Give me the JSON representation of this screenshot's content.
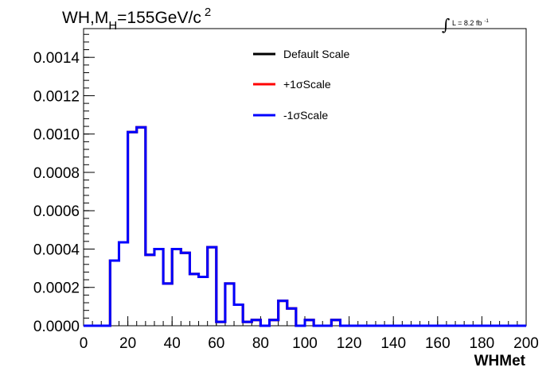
{
  "chart_data": {
    "type": "line",
    "title": {
      "main": "WH,M",
      "subscript": "H",
      "rest": "=155GeV/c",
      "superscript": "2"
    },
    "luminosity": {
      "symbol": "∫",
      "label": "L = 8.2 fb",
      "superscript": "-1"
    },
    "xlabel": "WHMet",
    "ylabel": "",
    "xlim": [
      0,
      200
    ],
    "ylim": [
      0,
      0.00155
    ],
    "x_ticks": [
      "0",
      "20",
      "40",
      "60",
      "80",
      "100",
      "120",
      "140",
      "160",
      "180",
      "200"
    ],
    "y_ticks": [
      "0.0000",
      "0.0002",
      "0.0004",
      "0.0006",
      "0.0008",
      "0.0010",
      "0.0012",
      "0.0014"
    ],
    "bin_edges": [
      0,
      4,
      8,
      12,
      16,
      20,
      24,
      28,
      32,
      36,
      40,
      44,
      48,
      52,
      56,
      60,
      64,
      68,
      72,
      76,
      80,
      84,
      88,
      92,
      96,
      100,
      104,
      108,
      112,
      116,
      120,
      124,
      128,
      132,
      136,
      140,
      144,
      148,
      152,
      156,
      160,
      164,
      168,
      172,
      176,
      180,
      184,
      188,
      192,
      196,
      200
    ],
    "legend_position": "top-center",
    "series": [
      {
        "name": "Default Scale",
        "color": "#000000",
        "values": [
          0,
          0,
          0,
          0.00034,
          0.000435,
          0.00101,
          0.001035,
          0.00037,
          0.0004,
          0.00022,
          0.0004,
          0.00038,
          0.00027,
          0.000255,
          0.00041,
          2e-05,
          0.00022,
          0.00011,
          2e-05,
          3e-05,
          0,
          3e-05,
          0.00013,
          9e-05,
          0,
          3e-05,
          0,
          0,
          3e-05,
          0,
          0,
          0,
          0,
          0,
          0,
          0,
          0,
          0,
          0,
          0,
          0,
          0,
          0,
          0,
          0,
          0,
          0,
          0,
          0,
          0
        ]
      },
      {
        "name": "+1σScale",
        "color": "#ff0000",
        "values": [
          0,
          0,
          0,
          0.00034,
          0.000435,
          0.00101,
          0.001035,
          0.00037,
          0.0004,
          0.00022,
          0.0004,
          0.00038,
          0.00027,
          0.000255,
          0.00041,
          2e-05,
          0.00022,
          0.00011,
          2e-05,
          3e-05,
          0,
          3e-05,
          0.00013,
          9e-05,
          0,
          3e-05,
          0,
          0,
          3e-05,
          0,
          0,
          0,
          0,
          0,
          0,
          0,
          0,
          0,
          0,
          0,
          0,
          0,
          0,
          0,
          0,
          0,
          0,
          0,
          0,
          0
        ]
      },
      {
        "name": "-1σScale",
        "color": "#0000ff",
        "values": [
          0,
          0,
          0,
          0.00034,
          0.000435,
          0.00101,
          0.001035,
          0.00037,
          0.0004,
          0.00022,
          0.0004,
          0.00038,
          0.00027,
          0.000255,
          0.00041,
          2e-05,
          0.00022,
          0.00011,
          2e-05,
          3e-05,
          0,
          3e-05,
          0.00013,
          9e-05,
          0,
          3e-05,
          0,
          0,
          3e-05,
          0,
          0,
          0,
          0,
          0,
          0,
          0,
          0,
          0,
          0,
          0,
          0,
          0,
          0,
          0,
          0,
          0,
          0,
          0,
          0,
          0
        ]
      }
    ]
  }
}
